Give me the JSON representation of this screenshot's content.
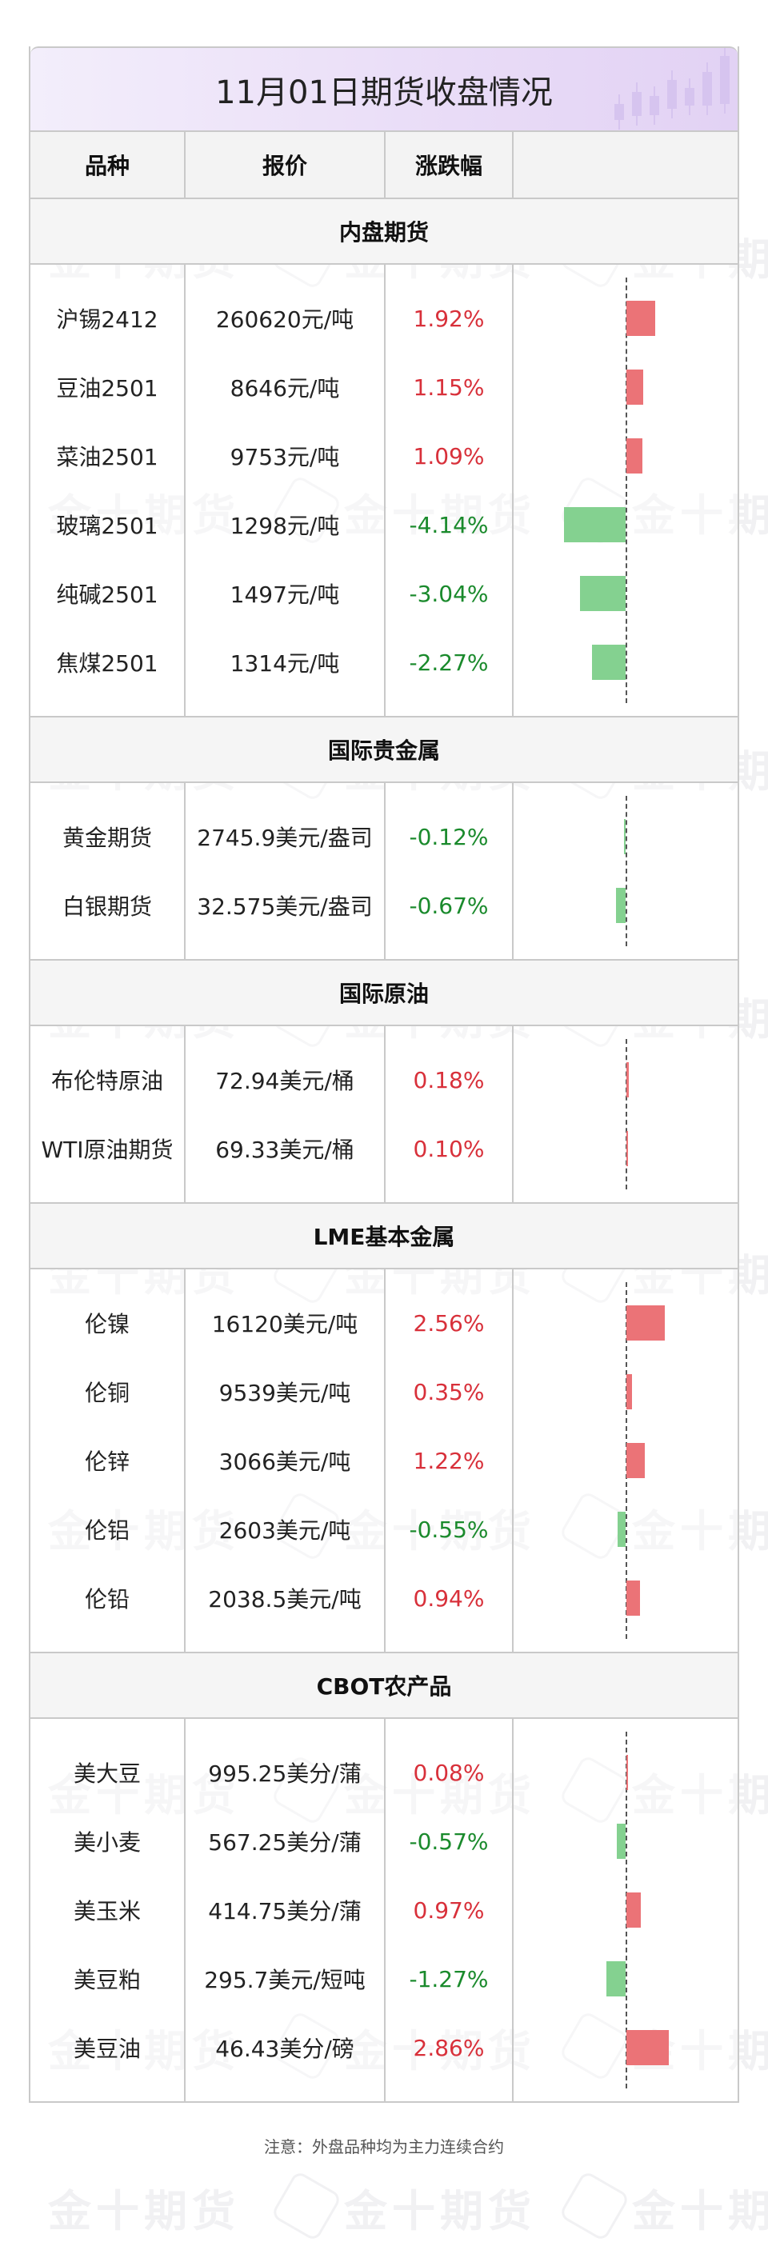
{
  "title": "11月01日期货收盘情况",
  "header": {
    "col_name": "品种",
    "col_price": "报价",
    "col_change": "涨跌幅"
  },
  "watermark": "金十期货",
  "sections": [
    {
      "name": "内盘期货",
      "rows": [
        {
          "name": "沪锡2412",
          "price": "260620元/吨",
          "change": "1.92%",
          "value": 1.92
        },
        {
          "name": "豆油2501",
          "price": "8646元/吨",
          "change": "1.15%",
          "value": 1.15
        },
        {
          "name": "菜油2501",
          "price": "9753元/吨",
          "change": "1.09%",
          "value": 1.09
        },
        {
          "name": "玻璃2501",
          "price": "1298元/吨",
          "change": "-4.14%",
          "value": -4.14
        },
        {
          "name": "纯碱2501",
          "price": "1497元/吨",
          "change": "-3.04%",
          "value": -3.04
        },
        {
          "name": "焦煤2501",
          "price": "1314元/吨",
          "change": "-2.27%",
          "value": -2.27
        }
      ]
    },
    {
      "name": "国际贵金属",
      "rows": [
        {
          "name": "黄金期货",
          "price": "2745.9美元/盎司",
          "change": "-0.12%",
          "value": -0.12
        },
        {
          "name": "白银期货",
          "price": "32.575美元/盎司",
          "change": "-0.67%",
          "value": -0.67
        }
      ]
    },
    {
      "name": "国际原油",
      "rows": [
        {
          "name": "布伦特原油",
          "price": "72.94美元/桶",
          "change": "0.18%",
          "value": 0.18
        },
        {
          "name": "WTI原油期货",
          "price": "69.33美元/桶",
          "change": "0.10%",
          "value": 0.1
        }
      ]
    },
    {
      "name": "LME基本金属",
      "rows": [
        {
          "name": "伦镍",
          "price": "16120美元/吨",
          "change": "2.56%",
          "value": 2.56
        },
        {
          "name": "伦铜",
          "price": "9539美元/吨",
          "change": "0.35%",
          "value": 0.35
        },
        {
          "name": "伦锌",
          "price": "3066美元/吨",
          "change": "1.22%",
          "value": 1.22
        },
        {
          "name": "伦铝",
          "price": "2603美元/吨",
          "change": "-0.55%",
          "value": -0.55
        },
        {
          "name": "伦铅",
          "price": "2038.5美元/吨",
          "change": "0.94%",
          "value": 0.94
        }
      ]
    },
    {
      "name": "CBOT农产品",
      "rows": [
        {
          "name": "美大豆",
          "price": "995.25美分/蒲",
          "change": "0.08%",
          "value": 0.08
        },
        {
          "name": "美小麦",
          "price": "567.25美分/蒲",
          "change": "-0.57%",
          "value": -0.57
        },
        {
          "name": "美玉米",
          "price": "414.75美分/蒲",
          "change": "0.97%",
          "value": 0.97
        },
        {
          "name": "美豆粕",
          "price": "295.7美元/短吨",
          "change": "-1.27%",
          "value": -1.27
        },
        {
          "name": "美豆油",
          "price": "46.43美分/磅",
          "change": "2.86%",
          "value": 2.86
        }
      ]
    }
  ],
  "note": "注意：外盘品种均为主力连续合约",
  "colors": {
    "up": "#d8303a",
    "down": "#1a8a2c",
    "up_bar": "#eb7377",
    "down_bar": "#84d190"
  }
}
